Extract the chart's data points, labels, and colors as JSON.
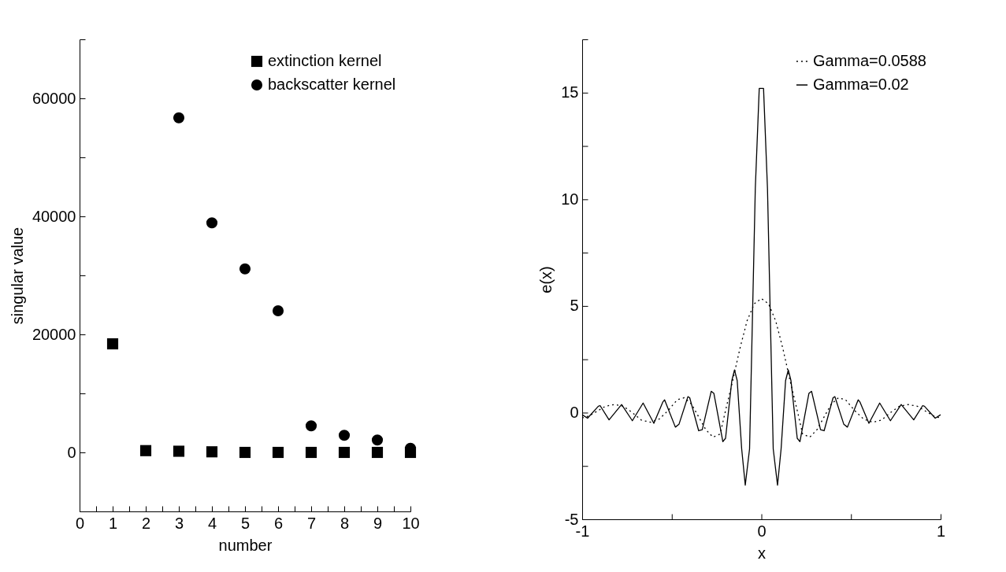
{
  "chart_data": [
    {
      "type": "scatter",
      "xlabel": "number",
      "ylabel": "singular value",
      "xlim": [
        0,
        10
      ],
      "xticks": [
        0,
        {
          "value": 0.5,
          "label": null
        },
        1,
        {
          "value": 1.5,
          "label": null
        },
        2,
        {
          "value": 2.5,
          "label": null
        },
        3,
        {
          "value": 3.5,
          "label": null
        },
        4,
        {
          "value": 4.5,
          "label": null
        },
        5,
        {
          "value": 5.5,
          "label": null
        },
        6,
        {
          "value": 6.5,
          "label": null
        },
        7,
        {
          "value": 7.5,
          "label": null
        },
        8,
        {
          "value": 8.5,
          "label": null
        },
        9,
        {
          "value": 9.5,
          "label": null
        },
        10
      ],
      "ylim": [
        -10000,
        70000
      ],
      "yticks": [
        {
          "value": -10000,
          "label": null
        },
        0,
        {
          "value": 10000,
          "label": null
        },
        20000,
        {
          "value": 30000,
          "label": null
        },
        40000,
        {
          "value": 50000,
          "label": null
        },
        60000,
        {
          "value": 70000,
          "label": null
        }
      ],
      "grid": false,
      "legend": "top right",
      "series": [
        {
          "name": "extinction kernel",
          "color": "#000000",
          "marker": "square",
          "x": [
            1,
            2,
            3,
            4,
            5,
            6,
            7,
            8,
            9,
            10
          ],
          "values": [
            18400,
            300,
            200,
            100,
            0,
            0,
            0,
            0,
            0,
            0
          ]
        },
        {
          "name": "backscatter kernel",
          "color": "#000000",
          "marker": "circle",
          "x": [
            3,
            4,
            5,
            6,
            7,
            8,
            9,
            10
          ],
          "values": [
            56700,
            38900,
            31100,
            24000,
            4500,
            2900,
            2100,
            700
          ]
        }
      ]
    },
    {
      "type": "line",
      "xlabel": "x",
      "ylabel": "e(x)",
      "xlim": [
        -1,
        1
      ],
      "xticks": [
        -1,
        {
          "value": -0.5,
          "label": null
        },
        0,
        {
          "value": 0.5,
          "label": null
        },
        1
      ],
      "ylim": [
        -5,
        17.5
      ],
      "yticks": [
        -5,
        {
          "value": -2.5,
          "label": null
        },
        0,
        {
          "value": 2.5,
          "label": null
        },
        5,
        {
          "value": 7.5,
          "label": null
        },
        10,
        {
          "value": 12.5,
          "label": null
        },
        15,
        {
          "value": 17.5,
          "label": null
        }
      ],
      "grid": false,
      "legend": "top right",
      "marker": "none",
      "series": [
        {
          "name": "Gamma=0.0588",
          "color": "#000000",
          "line_style": "dotted",
          "x": [
            -1,
            -0.96,
            -0.92,
            -0.87,
            -0.82,
            -0.77,
            -0.72,
            -0.67,
            -0.62,
            -0.57,
            -0.52,
            -0.47,
            -0.43,
            -0.39,
            -0.35,
            -0.31,
            -0.27,
            -0.23,
            -0.2,
            -0.16,
            -0.12,
            -0.08,
            -0.04,
            0,
            0.04,
            0.08,
            0.12,
            0.16,
            0.2,
            0.23,
            0.27,
            0.31,
            0.35,
            0.39,
            0.43,
            0.47,
            0.52,
            0.57,
            0.62,
            0.67,
            0.72,
            0.77,
            0.82,
            0.87,
            0.92,
            0.96,
            1
          ],
          "values": [
            -0.25,
            -0.15,
            0.05,
            0.3,
            0.38,
            0.3,
            0,
            -0.35,
            -0.45,
            -0.3,
            0.1,
            0.6,
            0.7,
            0.4,
            -0.2,
            -0.8,
            -1.15,
            -1,
            0.1,
            1.5,
            3,
            4.3,
            5.1,
            5.35,
            5.1,
            4.3,
            3,
            1.5,
            0.1,
            -1,
            -1.15,
            -0.8,
            -0.2,
            0.4,
            0.7,
            0.6,
            0.1,
            -0.3,
            -0.45,
            -0.35,
            0,
            0.3,
            0.38,
            0.3,
            0.05,
            -0.15,
            -0.25
          ]
        },
        {
          "name": "Gamma=0.02",
          "color": "#000000",
          "line_style": "solid",
          "x": [
            -1,
            -0.97,
            -0.91,
            -0.9,
            -0.85,
            -0.78,
            -0.72,
            -0.66,
            -0.6,
            -0.55,
            -0.54,
            -0.48,
            -0.46,
            -0.41,
            -0.4,
            -0.35,
            -0.33,
            -0.28,
            -0.265,
            -0.215,
            -0.2,
            -0.165,
            -0.15,
            -0.135,
            -0.11,
            -0.09,
            -0.066,
            -0.034,
            -0.012,
            0.012,
            0.034,
            0.066,
            0.09,
            0.11,
            0.135,
            0.15,
            0.165,
            0.2,
            0.215,
            0.265,
            0.28,
            0.33,
            0.35,
            0.4,
            0.41,
            0.46,
            0.48,
            0.54,
            0.55,
            0.6,
            0.66,
            0.72,
            0.78,
            0.85,
            0.9,
            0.91,
            0.97,
            1
          ],
          "values": [
            -0.1,
            -0.26,
            0.3,
            0.33,
            -0.34,
            0.38,
            -0.38,
            0.45,
            -0.5,
            0.5,
            0.6,
            -0.68,
            -0.55,
            0.75,
            0.7,
            -0.85,
            -0.8,
            1,
            0.9,
            -1.36,
            -1.2,
            1.5,
            2,
            1.5,
            -1.7,
            -3.4,
            -1.7,
            10.5,
            15.2,
            15.2,
            10.5,
            -1.7,
            -3.4,
            -1.7,
            1.5,
            2,
            1.5,
            -1.2,
            -1.36,
            0.9,
            1,
            -0.8,
            -0.85,
            0.7,
            0.75,
            -0.55,
            -0.68,
            0.6,
            0.5,
            -0.5,
            0.45,
            -0.38,
            0.38,
            -0.34,
            0.33,
            0.3,
            -0.26,
            -0.1
          ]
        }
      ]
    }
  ]
}
